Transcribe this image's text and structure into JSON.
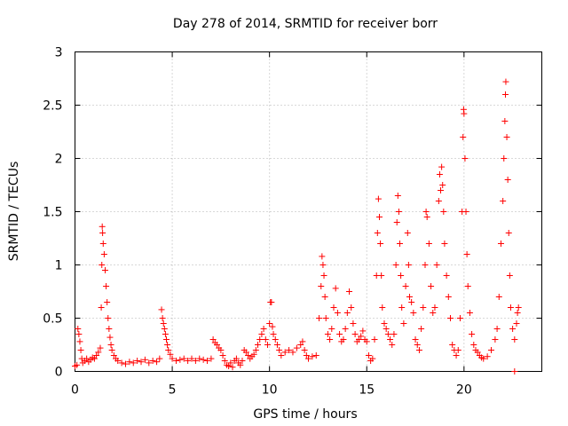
{
  "chart_data": {
    "type": "scatter",
    "title": "Day 278 of 2014, SRMTID for receiver borr",
    "xlabel": "GPS time / hours",
    "ylabel": "SRMTID / TECUs",
    "xlim": [
      0,
      24
    ],
    "ylim": [
      0,
      3
    ],
    "xticks": [
      0,
      5,
      10,
      15,
      20
    ],
    "xtick_labels": [
      "0",
      "5",
      "10",
      "15",
      "20"
    ],
    "yticks": [
      0,
      0.5,
      1,
      1.5,
      2,
      2.5,
      3
    ],
    "ytick_labels": [
      "0",
      "0.5",
      "1",
      "1.5",
      "2",
      "2.5",
      "3"
    ],
    "grid": true,
    "marker": "+",
    "color": "#ff0000",
    "series": [
      {
        "name": "SRMTID",
        "points": [
          [
            0.0,
            0.05
          ],
          [
            0.1,
            0.06
          ],
          [
            0.15,
            0.4
          ],
          [
            0.2,
            0.35
          ],
          [
            0.25,
            0.28
          ],
          [
            0.3,
            0.2
          ],
          [
            0.35,
            0.12
          ],
          [
            0.4,
            0.08
          ],
          [
            0.5,
            0.1
          ],
          [
            0.6,
            0.12
          ],
          [
            0.7,
            0.09
          ],
          [
            0.8,
            0.11
          ],
          [
            0.9,
            0.13
          ],
          [
            1.0,
            0.12
          ],
          [
            1.1,
            0.15
          ],
          [
            1.2,
            0.18
          ],
          [
            1.3,
            0.22
          ],
          [
            1.35,
            0.6
          ],
          [
            1.38,
            1.0
          ],
          [
            1.4,
            1.36
          ],
          [
            1.42,
            1.3
          ],
          [
            1.45,
            1.2
          ],
          [
            1.5,
            1.1
          ],
          [
            1.55,
            0.95
          ],
          [
            1.6,
            0.8
          ],
          [
            1.65,
            0.65
          ],
          [
            1.7,
            0.5
          ],
          [
            1.75,
            0.4
          ],
          [
            1.8,
            0.32
          ],
          [
            1.85,
            0.25
          ],
          [
            1.9,
            0.2
          ],
          [
            2.0,
            0.15
          ],
          [
            2.1,
            0.12
          ],
          [
            2.2,
            0.1
          ],
          [
            2.4,
            0.08
          ],
          [
            2.6,
            0.07
          ],
          [
            2.8,
            0.09
          ],
          [
            3.0,
            0.08
          ],
          [
            3.2,
            0.1
          ],
          [
            3.4,
            0.09
          ],
          [
            3.6,
            0.11
          ],
          [
            3.8,
            0.08
          ],
          [
            4.0,
            0.1
          ],
          [
            4.2,
            0.09
          ],
          [
            4.35,
            0.12
          ],
          [
            4.45,
            0.58
          ],
          [
            4.5,
            0.5
          ],
          [
            4.55,
            0.45
          ],
          [
            4.6,
            0.4
          ],
          [
            4.65,
            0.35
          ],
          [
            4.7,
            0.3
          ],
          [
            4.75,
            0.25
          ],
          [
            4.8,
            0.2
          ],
          [
            4.9,
            0.16
          ],
          [
            5.0,
            0.12
          ],
          [
            5.2,
            0.1
          ],
          [
            5.4,
            0.11
          ],
          [
            5.6,
            0.12
          ],
          [
            5.8,
            0.1
          ],
          [
            6.0,
            0.12
          ],
          [
            6.2,
            0.1
          ],
          [
            6.4,
            0.12
          ],
          [
            6.6,
            0.11
          ],
          [
            6.8,
            0.1
          ],
          [
            7.0,
            0.12
          ],
          [
            7.1,
            0.3
          ],
          [
            7.2,
            0.27
          ],
          [
            7.3,
            0.25
          ],
          [
            7.4,
            0.22
          ],
          [
            7.5,
            0.2
          ],
          [
            7.6,
            0.15
          ],
          [
            7.7,
            0.1
          ],
          [
            7.8,
            0.06
          ],
          [
            7.9,
            0.05
          ],
          [
            8.0,
            0.08
          ],
          [
            8.1,
            0.04
          ],
          [
            8.2,
            0.1
          ],
          [
            8.3,
            0.12
          ],
          [
            8.4,
            0.08
          ],
          [
            8.5,
            0.06
          ],
          [
            8.6,
            0.1
          ],
          [
            8.7,
            0.2
          ],
          [
            8.8,
            0.18
          ],
          [
            8.9,
            0.15
          ],
          [
            9.0,
            0.12
          ],
          [
            9.1,
            0.14
          ],
          [
            9.2,
            0.16
          ],
          [
            9.3,
            0.2
          ],
          [
            9.4,
            0.25
          ],
          [
            9.5,
            0.3
          ],
          [
            9.6,
            0.35
          ],
          [
            9.7,
            0.4
          ],
          [
            9.8,
            0.3
          ],
          [
            9.9,
            0.25
          ],
          [
            10.0,
            0.45
          ],
          [
            10.05,
            0.65
          ],
          [
            10.1,
            0.65
          ],
          [
            10.15,
            0.42
          ],
          [
            10.2,
            0.35
          ],
          [
            10.3,
            0.3
          ],
          [
            10.4,
            0.25
          ],
          [
            10.5,
            0.2
          ],
          [
            10.6,
            0.15
          ],
          [
            10.8,
            0.18
          ],
          [
            11.0,
            0.2
          ],
          [
            11.2,
            0.18
          ],
          [
            11.4,
            0.22
          ],
          [
            11.6,
            0.25
          ],
          [
            11.7,
            0.28
          ],
          [
            11.8,
            0.2
          ],
          [
            11.9,
            0.15
          ],
          [
            12.0,
            0.12
          ],
          [
            12.2,
            0.14
          ],
          [
            12.4,
            0.15
          ],
          [
            12.55,
            0.5
          ],
          [
            12.65,
            0.8
          ],
          [
            12.7,
            1.08
          ],
          [
            12.75,
            1.0
          ],
          [
            12.8,
            0.9
          ],
          [
            12.85,
            0.7
          ],
          [
            12.9,
            0.5
          ],
          [
            13.0,
            0.35
          ],
          [
            13.1,
            0.3
          ],
          [
            13.2,
            0.4
          ],
          [
            13.3,
            0.6
          ],
          [
            13.4,
            0.78
          ],
          [
            13.5,
            0.55
          ],
          [
            13.6,
            0.35
          ],
          [
            13.7,
            0.28
          ],
          [
            13.8,
            0.3
          ],
          [
            13.9,
            0.4
          ],
          [
            14.0,
            0.55
          ],
          [
            14.1,
            0.75
          ],
          [
            14.2,
            0.6
          ],
          [
            14.3,
            0.45
          ],
          [
            14.4,
            0.35
          ],
          [
            14.5,
            0.28
          ],
          [
            14.6,
            0.3
          ],
          [
            14.7,
            0.33
          ],
          [
            14.8,
            0.38
          ],
          [
            14.9,
            0.3
          ],
          [
            15.0,
            0.28
          ],
          [
            15.1,
            0.15
          ],
          [
            15.2,
            0.1
          ],
          [
            15.3,
            0.12
          ],
          [
            15.4,
            0.3
          ],
          [
            15.5,
            0.9
          ],
          [
            15.55,
            1.3
          ],
          [
            15.6,
            1.62
          ],
          [
            15.65,
            1.45
          ],
          [
            15.7,
            1.2
          ],
          [
            15.75,
            0.9
          ],
          [
            15.8,
            0.6
          ],
          [
            15.9,
            0.45
          ],
          [
            16.0,
            0.4
          ],
          [
            16.1,
            0.35
          ],
          [
            16.2,
            0.3
          ],
          [
            16.3,
            0.25
          ],
          [
            16.4,
            0.35
          ],
          [
            16.5,
            1.0
          ],
          [
            16.55,
            1.4
          ],
          [
            16.6,
            1.65
          ],
          [
            16.65,
            1.5
          ],
          [
            16.7,
            1.2
          ],
          [
            16.75,
            0.9
          ],
          [
            16.8,
            0.6
          ],
          [
            16.9,
            0.45
          ],
          [
            17.0,
            0.8
          ],
          [
            17.1,
            1.3
          ],
          [
            17.15,
            1.0
          ],
          [
            17.2,
            0.7
          ],
          [
            17.3,
            0.65
          ],
          [
            17.4,
            0.55
          ],
          [
            17.5,
            0.3
          ],
          [
            17.6,
            0.25
          ],
          [
            17.7,
            0.2
          ],
          [
            17.8,
            0.4
          ],
          [
            17.9,
            0.6
          ],
          [
            18.0,
            1.0
          ],
          [
            18.05,
            1.5
          ],
          [
            18.1,
            1.45
          ],
          [
            18.2,
            1.2
          ],
          [
            18.3,
            0.8
          ],
          [
            18.4,
            0.55
          ],
          [
            18.5,
            0.6
          ],
          [
            18.6,
            1.0
          ],
          [
            18.7,
            1.6
          ],
          [
            18.75,
            1.85
          ],
          [
            18.8,
            1.7
          ],
          [
            18.85,
            1.92
          ],
          [
            18.9,
            1.75
          ],
          [
            18.95,
            1.5
          ],
          [
            19.0,
            1.2
          ],
          [
            19.1,
            0.9
          ],
          [
            19.2,
            0.7
          ],
          [
            19.3,
            0.5
          ],
          [
            19.4,
            0.25
          ],
          [
            19.5,
            0.2
          ],
          [
            19.6,
            0.15
          ],
          [
            19.7,
            0.2
          ],
          [
            19.8,
            0.5
          ],
          [
            19.9,
            1.5
          ],
          [
            19.95,
            2.2
          ],
          [
            19.98,
            2.46
          ],
          [
            20.0,
            2.42
          ],
          [
            20.05,
            2.0
          ],
          [
            20.1,
            1.5
          ],
          [
            20.15,
            1.1
          ],
          [
            20.2,
            0.8
          ],
          [
            20.3,
            0.55
          ],
          [
            20.4,
            0.35
          ],
          [
            20.5,
            0.25
          ],
          [
            20.6,
            0.2
          ],
          [
            20.7,
            0.18
          ],
          [
            20.8,
            0.15
          ],
          [
            20.9,
            0.13
          ],
          [
            21.0,
            0.12
          ],
          [
            21.2,
            0.14
          ],
          [
            21.4,
            0.2
          ],
          [
            21.6,
            0.3
          ],
          [
            21.7,
            0.4
          ],
          [
            21.8,
            0.7
          ],
          [
            21.9,
            1.2
          ],
          [
            22.0,
            1.6
          ],
          [
            22.05,
            2.0
          ],
          [
            22.1,
            2.35
          ],
          [
            22.13,
            2.6
          ],
          [
            22.15,
            2.72
          ],
          [
            22.2,
            2.2
          ],
          [
            22.25,
            1.8
          ],
          [
            22.3,
            1.3
          ],
          [
            22.35,
            0.9
          ],
          [
            22.4,
            0.6
          ],
          [
            22.5,
            0.4
          ],
          [
            22.6,
            0.3
          ],
          [
            22.7,
            0.45
          ],
          [
            22.75,
            0.55
          ],
          [
            22.8,
            0.6
          ],
          [
            22.6,
            0.0
          ]
        ]
      }
    ]
  }
}
